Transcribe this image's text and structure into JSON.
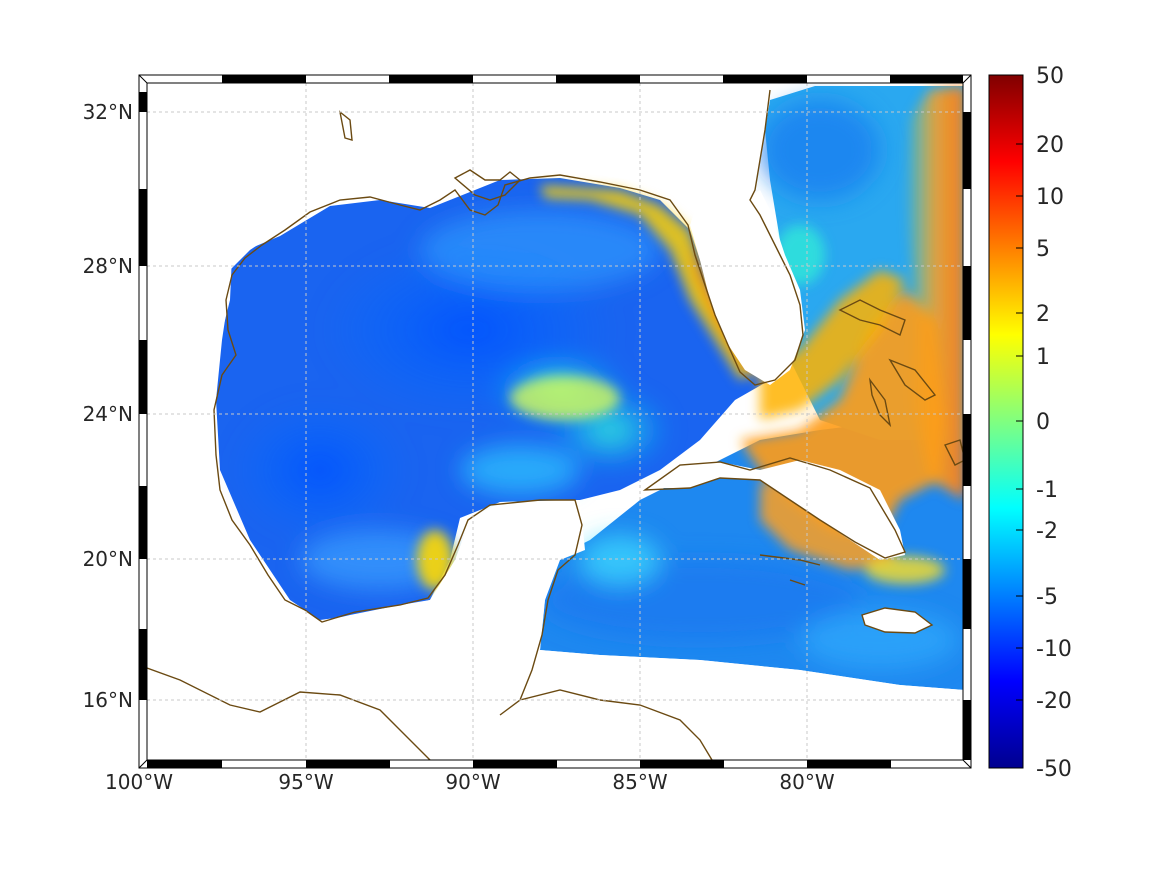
{
  "map": {
    "lat_ticks": [
      "32°N",
      "28°N",
      "24°N",
      "20°N",
      "16°N"
    ],
    "lon_ticks": [
      "100°W",
      "95°W",
      "90°W",
      "85°W",
      "80°W"
    ],
    "coastline_color": "#6b4a12",
    "grid_color": "#c8c8c8",
    "land_color": "#ffffff"
  },
  "colorbar": {
    "colormap": "jet",
    "labels": [
      "50",
      "20",
      "10",
      "5",
      "2",
      "1",
      "0",
      "-1",
      "-2",
      "-5",
      "-10",
      "-20",
      "-50"
    ]
  }
}
